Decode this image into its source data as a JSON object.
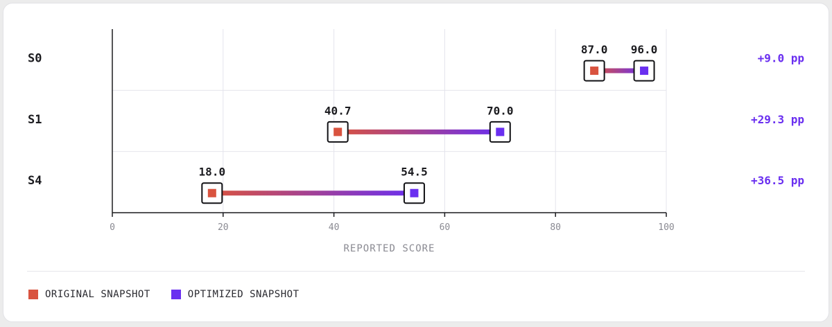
{
  "chart_data": {
    "type": "dumbbell",
    "xlabel": "REPORTED SCORE",
    "xlim": [
      0,
      100
    ],
    "x_ticks": [
      0,
      20,
      40,
      60,
      80,
      100
    ],
    "grid": true,
    "legend_placement": "bottom-left",
    "categories": [
      "S0",
      "S1",
      "S4"
    ],
    "series": [
      {
        "name": "ORIGINAL SNAPSHOT",
        "values": [
          87.0,
          40.7,
          18.0
        ]
      },
      {
        "name": "OPTIMIZED SNAPSHOT",
        "values": [
          96.0,
          70.0,
          54.5
        ]
      }
    ],
    "value_labels": {
      "original": [
        "87.0",
        "40.7",
        "18.0"
      ],
      "optimized": [
        "96.0",
        "70.0",
        "54.5"
      ]
    },
    "annotations": [
      "+9.0 pp",
      "+29.3 pp",
      "+36.5 pp"
    ]
  },
  "colors": {
    "original": "#d9533f",
    "optimized": "#6a2ff0",
    "delta": "#6a2ff0",
    "grid": "#e4e4ec",
    "axis": "#1b1b1f"
  }
}
